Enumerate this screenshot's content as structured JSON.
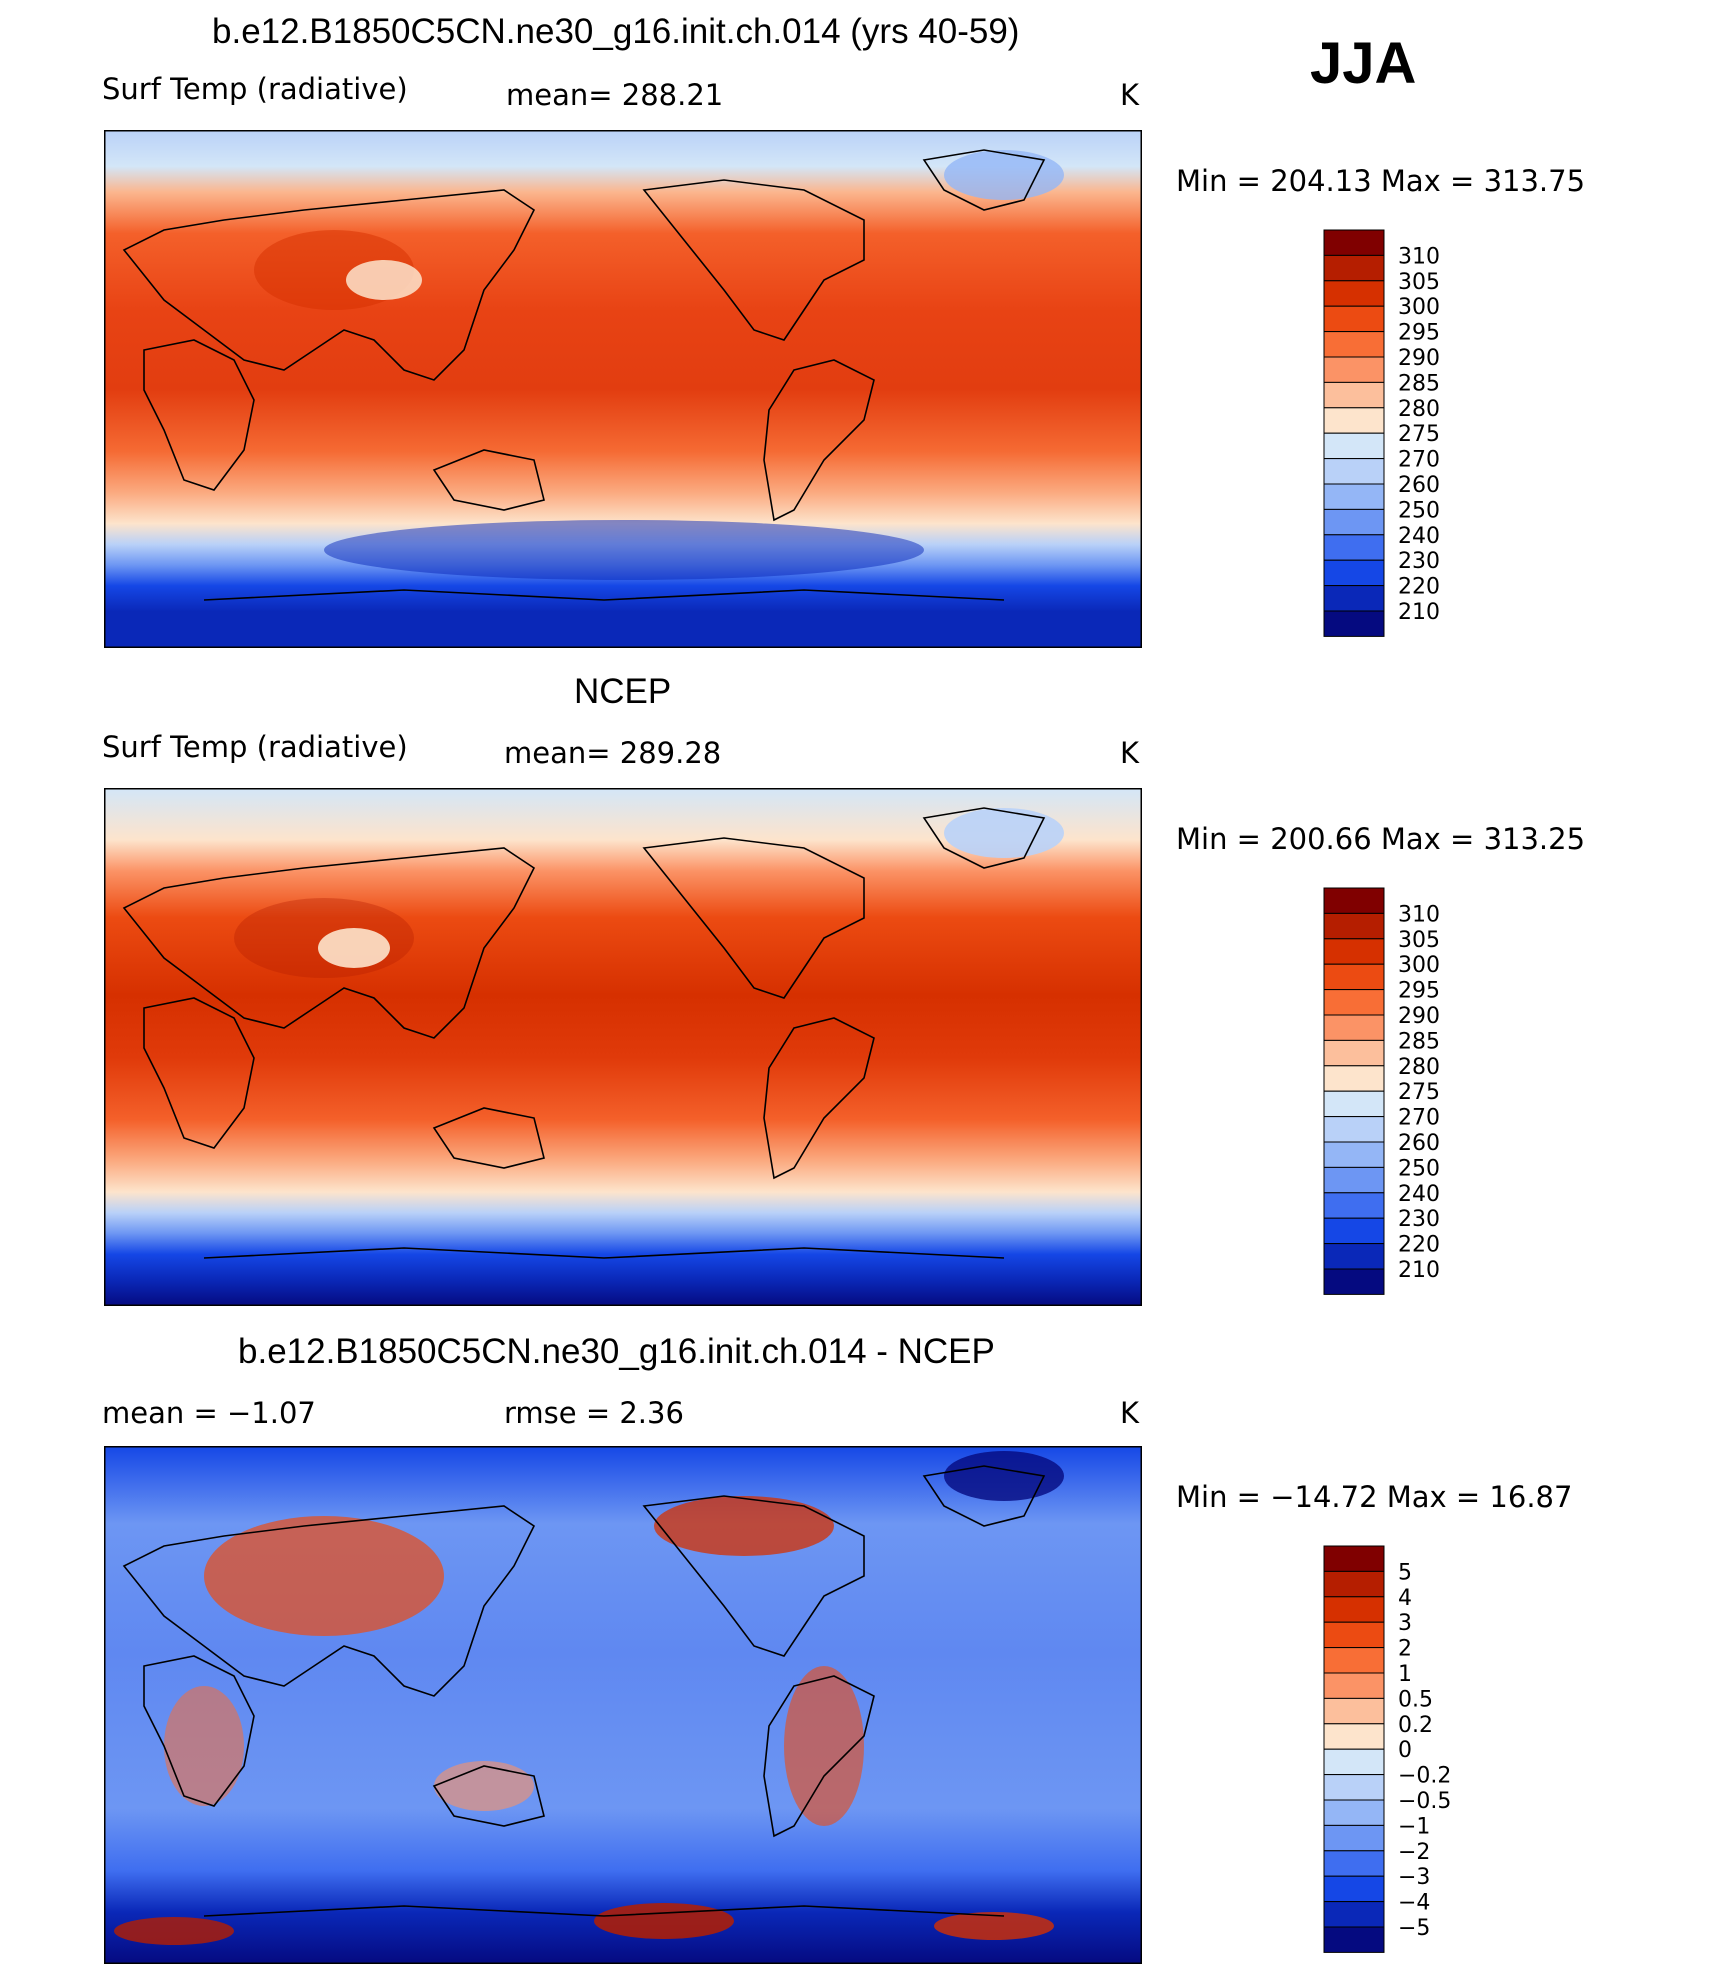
{
  "season": "JJA",
  "chart_data": [
    {
      "type": "heatmap",
      "title": "b.e12.B1850C5CN.ne30_g16.init.ch.014 (yrs 40-59)",
      "variable": "Surf Temp (radiative)",
      "mean_text": "mean=  288.21",
      "units": "K",
      "min": 204.13,
      "max": 313.75,
      "minmax_text": "Min  =  204.13  Max  =  313.75",
      "colorbar_levels": [
        "310",
        "305",
        "300",
        "295",
        "290",
        "285",
        "280",
        "275",
        "270",
        "260",
        "250",
        "240",
        "230",
        "220",
        "210"
      ],
      "colors": [
        "#800000",
        "#b51e00",
        "#d63000",
        "#ec4b12",
        "#f86e36",
        "#fb9366",
        "#fcbf9c",
        "#fde4cc",
        "#d3e6f8",
        "#b9d1f8",
        "#94b6f6",
        "#6d96f3",
        "#3f6ef0",
        "#1547e6",
        "#0a28b8",
        "#050a80"
      ]
    },
    {
      "type": "heatmap",
      "title": "NCEP",
      "variable": "Surf Temp (radiative)",
      "mean_text": "mean=  289.28",
      "units": "K",
      "min": 200.66,
      "max": 313.25,
      "minmax_text": "Min  =  200.66  Max  =  313.25",
      "colorbar_levels": [
        "310",
        "305",
        "300",
        "295",
        "290",
        "285",
        "280",
        "275",
        "270",
        "260",
        "250",
        "240",
        "230",
        "220",
        "210"
      ],
      "colors": [
        "#800000",
        "#b51e00",
        "#d63000",
        "#ec4b12",
        "#f86e36",
        "#fb9366",
        "#fcbf9c",
        "#fde4cc",
        "#d3e6f8",
        "#b9d1f8",
        "#94b6f6",
        "#6d96f3",
        "#3f6ef0",
        "#1547e6",
        "#0a28b8",
        "#050a80"
      ]
    },
    {
      "type": "heatmap",
      "title": "b.e12.B1850C5CN.ne30_g16.init.ch.014 - NCEP",
      "mean_text": "mean  =    −1.07",
      "rmse_text": "rmse  =     2.36",
      "units": "K",
      "min": -14.72,
      "max": 16.87,
      "minmax_text": "Min  =  −14.72  Max  =    16.87",
      "colorbar_levels": [
        "5",
        "4",
        "3",
        "2",
        "1",
        "0.5",
        "0.2",
        "0",
        "−0.2",
        "−0.5",
        "−1",
        "−2",
        "−3",
        "−4",
        "−5"
      ],
      "colors": [
        "#800000",
        "#b51e00",
        "#d63000",
        "#ec4b12",
        "#f86e36",
        "#fb9366",
        "#fcbf9c",
        "#fde4cc",
        "#d3e6f8",
        "#b9d1f8",
        "#94b6f6",
        "#6d96f3",
        "#3f6ef0",
        "#1547e6",
        "#0a28b8",
        "#050a80"
      ]
    }
  ]
}
